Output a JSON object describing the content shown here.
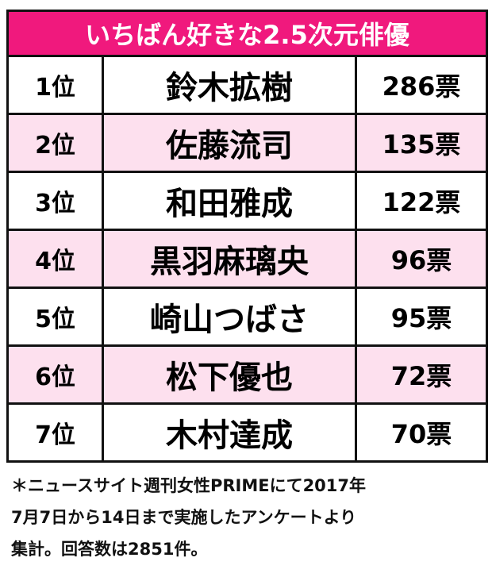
{
  "chart_data": {
    "type": "table",
    "title": "いちばん好きな2.5次元俳優",
    "colors": {
      "header": "#f0197d",
      "alt_row": "#fde0ee",
      "border": "#111111"
    },
    "rows": [
      {
        "rank": "1位",
        "name": "鈴木拡樹",
        "votes": "286票"
      },
      {
        "rank": "2位",
        "name": "佐藤流司",
        "votes": "135票"
      },
      {
        "rank": "3位",
        "name": "和田雅成",
        "votes": "122票"
      },
      {
        "rank": "4位",
        "name": "黒羽麻璃央",
        "votes": "96票"
      },
      {
        "rank": "5位",
        "name": "崎山つばさ",
        "votes": "95票"
      },
      {
        "rank": "6位",
        "name": "松下優也",
        "votes": "72票"
      },
      {
        "rank": "7位",
        "name": "木村達成",
        "votes": "70票"
      }
    ],
    "note": [
      "＊ニュースサイト週刊女性PRIMEにて2017年",
      "7月7日から14日まで実施したアンケートより",
      "集計。回答数は2851件。"
    ]
  }
}
